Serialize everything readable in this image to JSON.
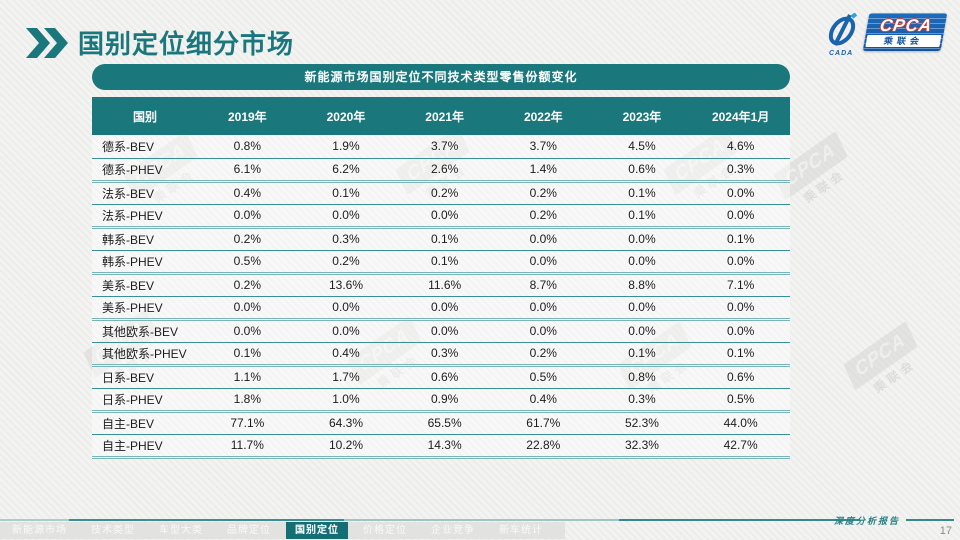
{
  "slide": {
    "title": "国别定位细分市场",
    "page_number": "17",
    "footer_note": "深度分析报告"
  },
  "logo": {
    "cpca": "CPCA",
    "cada": "CADA",
    "cn": "乘联会"
  },
  "watermark": {
    "text_en": "CPCA",
    "text_cn": "乘联会"
  },
  "table": {
    "banner": "新能源市场国别定位不同技术类型零售份额变化",
    "columns": [
      "国别",
      "2019年",
      "2020年",
      "2021年",
      "2022年",
      "2023年",
      "2024年1月"
    ],
    "rows": [
      {
        "label": "德系-BEV",
        "values": [
          "0.8%",
          "1.9%",
          "3.7%",
          "3.7%",
          "4.5%",
          "4.6%"
        ]
      },
      {
        "label": "德系-PHEV",
        "values": [
          "6.1%",
          "6.2%",
          "2.6%",
          "1.4%",
          "0.6%",
          "0.3%"
        ]
      },
      {
        "label": "法系-BEV",
        "values": [
          "0.4%",
          "0.1%",
          "0.2%",
          "0.2%",
          "0.1%",
          "0.0%"
        ]
      },
      {
        "label": "法系-PHEV",
        "values": [
          "0.0%",
          "0.0%",
          "0.0%",
          "0.2%",
          "0.1%",
          "0.0%"
        ]
      },
      {
        "label": "韩系-BEV",
        "values": [
          "0.2%",
          "0.3%",
          "0.1%",
          "0.0%",
          "0.0%",
          "0.1%"
        ]
      },
      {
        "label": "韩系-PHEV",
        "values": [
          "0.5%",
          "0.2%",
          "0.1%",
          "0.0%",
          "0.0%",
          "0.0%"
        ]
      },
      {
        "label": "美系-BEV",
        "values": [
          "0.2%",
          "13.6%",
          "11.6%",
          "8.7%",
          "8.8%",
          "7.1%"
        ]
      },
      {
        "label": "美系-PHEV",
        "values": [
          "0.0%",
          "0.0%",
          "0.0%",
          "0.0%",
          "0.0%",
          "0.0%"
        ]
      },
      {
        "label": "其他欧系-BEV",
        "values": [
          "0.0%",
          "0.0%",
          "0.0%",
          "0.0%",
          "0.0%",
          "0.0%"
        ]
      },
      {
        "label": "其他欧系-PHEV",
        "values": [
          "0.1%",
          "0.4%",
          "0.3%",
          "0.2%",
          "0.1%",
          "0.1%"
        ]
      },
      {
        "label": "日系-BEV",
        "values": [
          "1.1%",
          "1.7%",
          "0.6%",
          "0.5%",
          "0.8%",
          "0.6%"
        ]
      },
      {
        "label": "日系-PHEV",
        "values": [
          "1.8%",
          "1.0%",
          "0.9%",
          "0.4%",
          "0.3%",
          "0.5%"
        ]
      },
      {
        "label": "自主-BEV",
        "values": [
          "77.1%",
          "64.3%",
          "65.5%",
          "61.7%",
          "52.3%",
          "44.0%"
        ]
      },
      {
        "label": "自主-PHEV",
        "values": [
          "11.7%",
          "10.2%",
          "14.3%",
          "22.8%",
          "32.3%",
          "42.7%"
        ]
      }
    ]
  },
  "footer_tabs": [
    {
      "label": "新能源市场",
      "active": false
    },
    {
      "label": "技术类型",
      "active": false
    },
    {
      "label": "车型大类",
      "active": false
    },
    {
      "label": "品牌定位",
      "active": false
    },
    {
      "label": "国别定位",
      "active": true
    },
    {
      "label": "价格定位",
      "active": false
    },
    {
      "label": "企业竞争",
      "active": false
    },
    {
      "label": "新车统计",
      "active": false
    }
  ],
  "colors": {
    "teal": "#1a777c",
    "teal_dark": "#156e74",
    "row_line": "#379094",
    "group_line": "#79b4b7",
    "logo_blue": "#14539f",
    "logo_red": "#d03a2f"
  }
}
